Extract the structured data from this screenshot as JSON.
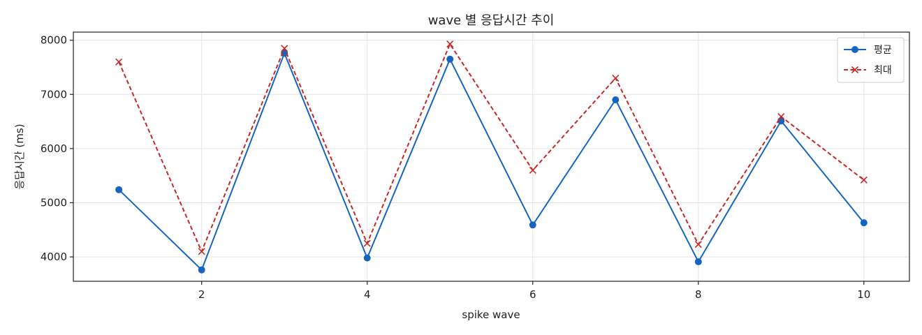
{
  "chart_data": {
    "type": "line",
    "title": "wave 별 응답시간 추이",
    "xlabel": "spike wave",
    "ylabel": "응답시간 (ms)",
    "x": [
      1,
      2,
      3,
      4,
      5,
      6,
      7,
      8,
      9,
      10
    ],
    "xlim": [
      0.45,
      10.55
    ],
    "ylim": [
      3550,
      8150
    ],
    "xticks": [
      2,
      4,
      6,
      8,
      10
    ],
    "yticks": [
      4000,
      5000,
      6000,
      7000,
      8000
    ],
    "grid": true,
    "legend_position": "top-right",
    "series": [
      {
        "name": "평균",
        "color": "#1565c0",
        "style": "solid",
        "marker": "circle",
        "values": [
          5240,
          3760,
          7760,
          3980,
          7650,
          4590,
          6900,
          3910,
          6510,
          4630
        ]
      },
      {
        "name": "최대",
        "color": "#c62828",
        "style": "dashed",
        "marker": "x",
        "values": [
          7600,
          4100,
          7850,
          4250,
          7930,
          5600,
          7300,
          4230,
          6590,
          5420
        ]
      }
    ]
  }
}
